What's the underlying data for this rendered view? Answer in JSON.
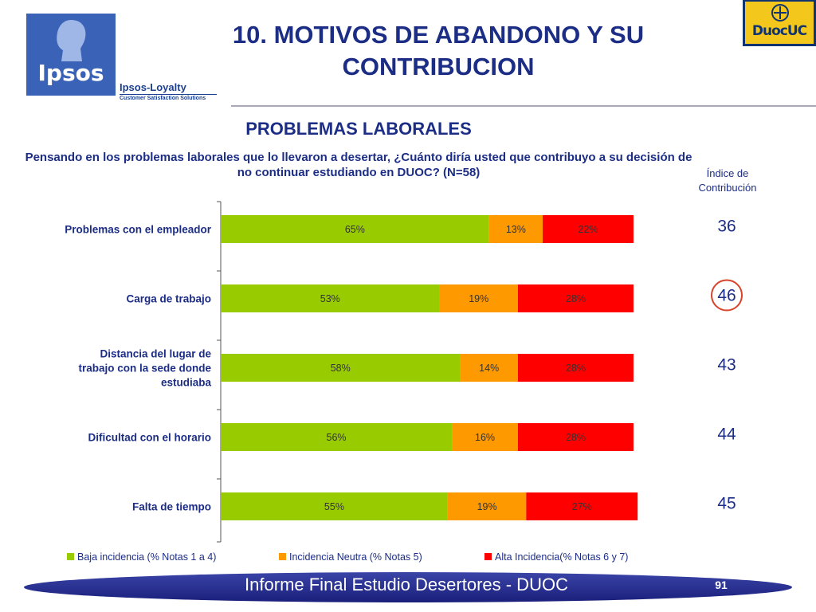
{
  "title": "10. MOTIVOS DE ABANDONO Y SU CONTRIBUCION",
  "logos": {
    "ipsos": "Ipsos",
    "ipsos_loyalty": "Ipsos-Loyalty",
    "ipsos_tagline": "Customer Satisfaction Solutions",
    "duoc": "DuocUC"
  },
  "chart_heading": "PROBLEMAS LABORALES",
  "question": "Pensando en los problemas laborales que lo llevaron a desertar, ¿Cuánto diría usted que contribuyo a su decisión de no continuar estudiando en DUOC? (N=58)",
  "index_header": "Índice de Contribución",
  "footer": {
    "text": "Informe Final Estudio Desertores - DUOC",
    "page": "91"
  },
  "chart_data": {
    "type": "bar",
    "orientation": "horizontal",
    "stacked": true,
    "categories": [
      "Problemas con el empleador",
      "Carga de trabajo",
      "Distancia del lugar de trabajo con la sede donde estudiaba",
      "Dificultad con el horario",
      "Falta de tiempo"
    ],
    "series": [
      {
        "name": "Baja incidencia (% Notas 1 a 4)",
        "values": [
          65,
          53,
          58,
          56,
          55
        ],
        "labels": [
          "65%",
          "53%",
          "58%",
          "56%",
          "55%"
        ],
        "color": "#99cc00"
      },
      {
        "name": "Incidencia Neutra (% Notas 5)",
        "values": [
          13,
          19,
          14,
          16,
          19
        ],
        "labels": [
          "13%",
          "19%",
          "14%",
          "16%",
          "19%"
        ],
        "color": "#ff9900"
      },
      {
        "name": "Alta Incidencia(% Notas 6 y 7)",
        "values": [
          22,
          28,
          28,
          28,
          27
        ],
        "labels": [
          "22%",
          "28%",
          "28%",
          "28%",
          "27%"
        ],
        "color": "#ff0000"
      }
    ],
    "contribution_index": [
      "36",
      "46",
      "43",
      "44",
      "45"
    ],
    "highlighted_index": 1,
    "xlim": [
      0,
      100
    ],
    "legend_position": "bottom",
    "grid": false
  }
}
